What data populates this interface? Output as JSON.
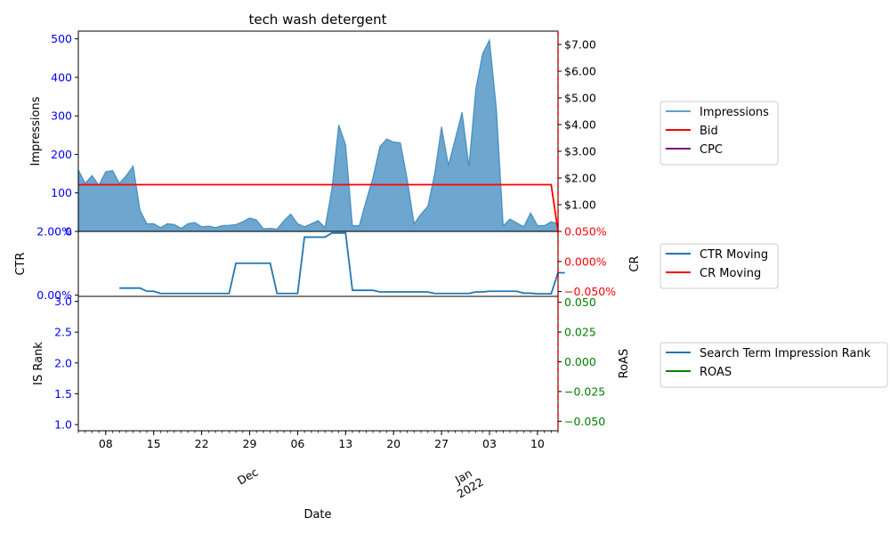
{
  "figure": {
    "title": "tech wash detergent",
    "xlabel": "Date",
    "x_major": [
      {
        "pos": 4,
        "label": "08"
      },
      {
        "pos": 11,
        "label": "15"
      },
      {
        "pos": 18,
        "label": "22"
      },
      {
        "pos": 25,
        "label": "29"
      },
      {
        "pos": 32,
        "label": "06"
      },
      {
        "pos": 39,
        "label": "13"
      },
      {
        "pos": 46,
        "label": "20"
      },
      {
        "pos": 53,
        "label": "27"
      },
      {
        "pos": 60,
        "label": "03"
      },
      {
        "pos": 67,
        "label": "10"
      }
    ],
    "x_month_labels": [
      {
        "pos": 25,
        "label": "Dec"
      },
      {
        "pos": 56.5,
        "label": "Jan\n2022"
      }
    ]
  },
  "chart_data": [
    {
      "type": "area",
      "ylabel": "Impressions",
      "y2label": "",
      "ylim": [
        0,
        520
      ],
      "yticks": [
        "0",
        "100",
        "200",
        "300",
        "400",
        "500"
      ],
      "y2lim": [
        0,
        7.5
      ],
      "y2ticks": [
        "$1.00",
        "$2.00",
        "$3.00",
        "$4.00",
        "$5.00",
        "$6.00",
        "$7.00"
      ],
      "legend_position": "right",
      "series": [
        {
          "name": "Impressions",
          "axis": "left",
          "color": "#1f77b4",
          "values": [
            160,
            125,
            145,
            120,
            155,
            158,
            125,
            145,
            170,
            55,
            20,
            20,
            10,
            20,
            18,
            8,
            20,
            23,
            12,
            14,
            10,
            15,
            16,
            18,
            25,
            35,
            30,
            7,
            8,
            6,
            28,
            45,
            20,
            12,
            20,
            28,
            10,
            110,
            277,
            225,
            15,
            15,
            80,
            140,
            220,
            240,
            232,
            230,
            135,
            20,
            45,
            65,
            150,
            272,
            172,
            240,
            310,
            170,
            370,
            462,
            497,
            320,
            15,
            32,
            22,
            12,
            48,
            15,
            15,
            25,
            20
          ]
        },
        {
          "name": "Bid",
          "axis": "right",
          "color": "#ff0000",
          "values": [
            1.75,
            1.75,
            1.75,
            1.75,
            1.75,
            1.75,
            1.75,
            1.75,
            1.75,
            1.75,
            1.75,
            1.75,
            1.75,
            1.75,
            1.75,
            1.75,
            1.75,
            1.75,
            1.75,
            1.75,
            1.75,
            1.75,
            1.75,
            1.75,
            1.75,
            1.75,
            1.75,
            1.75,
            1.75,
            1.75,
            1.75,
            1.75,
            1.75,
            1.75,
            1.75,
            1.75,
            1.75,
            1.75,
            1.75,
            1.75,
            1.75,
            1.75,
            1.75,
            1.75,
            1.75,
            1.75,
            1.75,
            1.75,
            1.75,
            1.75,
            1.75,
            1.75,
            1.75,
            1.75,
            1.75,
            1.75,
            1.75,
            1.75,
            1.75,
            1.75,
            1.75,
            1.75,
            1.75,
            1.75,
            1.75,
            1.75,
            1.75,
            1.75,
            1.75,
            1.75,
            0.0
          ]
        },
        {
          "name": "CPC",
          "axis": "right",
          "color": "#800080",
          "values": []
        }
      ]
    },
    {
      "type": "line",
      "ylabel": "CTR",
      "y2label": "CR",
      "ylim": [
        -0.04,
        2.0
      ],
      "yticks": [
        "0.00%",
        "2.00%"
      ],
      "y2lim": [
        -0.058,
        0.05
      ],
      "y2ticks": [
        "−0.050%",
        "0.000%",
        "0.050%"
      ],
      "legend_position": "right",
      "series": [
        {
          "name": "CTR Moving",
          "axis": "left",
          "color": "#1f77b4",
          "values": [
            null,
            null,
            null,
            null,
            null,
            null,
            0.22,
            0.22,
            0.22,
            0.22,
            0.12,
            0.12,
            0.05,
            0.05,
            0.05,
            0.05,
            0.05,
            0.05,
            0.05,
            0.05,
            0.05,
            0.05,
            0.05,
            1.0,
            1.0,
            1.0,
            1.0,
            1.0,
            1.0,
            0.05,
            0.05,
            0.05,
            0.05,
            1.82,
            1.82,
            1.82,
            1.82,
            1.95,
            1.95,
            1.95,
            0.15,
            0.15,
            0.15,
            0.15,
            0.1,
            0.1,
            0.1,
            0.1,
            0.1,
            0.1,
            0.1,
            0.1,
            0.05,
            0.05,
            0.05,
            0.05,
            0.05,
            0.05,
            0.1,
            0.1,
            0.12,
            0.12,
            0.12,
            0.12,
            0.12,
            0.06,
            0.06,
            0.04,
            0.04,
            0.04,
            0.7,
            0.7
          ]
        },
        {
          "name": "CR Moving",
          "axis": "right",
          "color": "#ff0000",
          "values": []
        }
      ]
    },
    {
      "type": "line",
      "ylabel": "IS Rank",
      "y2label": "RoAS",
      "ylim": [
        0.9,
        3.08
      ],
      "yticks": [
        "1.0",
        "1.5",
        "2.0",
        "2.5",
        "3.0"
      ],
      "y2lim": [
        -0.058,
        0.055
      ],
      "y2ticks": [
        "−0.050",
        "−0.025",
        "0.000",
        "0.025",
        "0.050"
      ],
      "legend_position": "right",
      "series": [
        {
          "name": "Search Term Impression Rank",
          "axis": "left",
          "color": "#1f77b4",
          "values": []
        },
        {
          "name": "ROAS",
          "axis": "right",
          "color": "#008000",
          "values": []
        }
      ]
    }
  ]
}
